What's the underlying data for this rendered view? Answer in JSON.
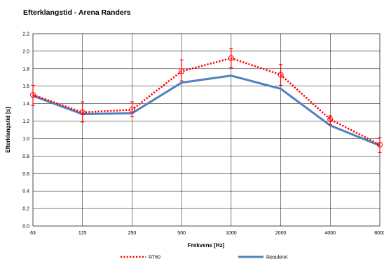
{
  "chart_data": {
    "type": "line",
    "title": "Efterklangstid - Arena Randers",
    "xlabel": "Frekvens [Hz]",
    "ylabel": "Efterklangstid [s]",
    "categories": [
      "63",
      "125",
      "250",
      "500",
      "1000",
      "2000",
      "4000",
      "8000"
    ],
    "ylim": [
      0.0,
      2.2
    ],
    "yticks": [
      "0.0",
      "0.2",
      "0.4",
      "0.6",
      "0.8",
      "1.0",
      "1.2",
      "1.4",
      "1.6",
      "1.8",
      "2.0",
      "2.2"
    ],
    "grid": true,
    "legend_position": "bottom",
    "series": [
      {
        "name": "RT60",
        "color": "#ff0000",
        "style": "dotted",
        "marker": "open-circle",
        "values": [
          1.5,
          1.3,
          1.33,
          1.77,
          1.92,
          1.73,
          1.22,
          0.93
        ],
        "error_low": [
          1.38,
          1.19,
          1.25,
          1.66,
          1.81,
          1.61,
          1.16,
          0.84
        ],
        "error_high": [
          1.61,
          1.42,
          1.42,
          1.9,
          2.03,
          1.85,
          1.26,
          1.01
        ]
      },
      {
        "name": "Reguleret",
        "color": "#4f81bd",
        "style": "solid",
        "values": [
          1.49,
          1.28,
          1.29,
          1.64,
          1.72,
          1.57,
          1.15,
          0.92
        ]
      }
    ]
  }
}
